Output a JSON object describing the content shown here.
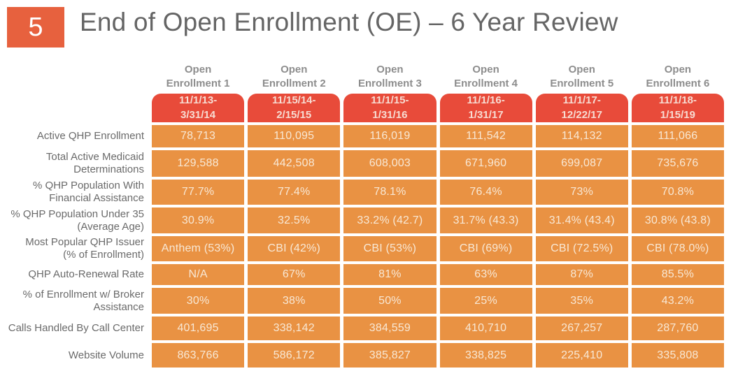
{
  "slide": {
    "slide_number": "5",
    "title": "End of Open Enrollment (OE) – 6 Year Review"
  },
  "colors": {
    "slide_number_box": "#e7613e",
    "period_cell_red": "#e84b3a",
    "data_cell_orange": "#e99243",
    "title_text": "#656565",
    "column_header_text": "#8d8d8d",
    "row_label_text": "#6a6a6a",
    "cell_text": "#f8e8d5",
    "period_text": "#f7dcd2"
  },
  "table": {
    "columns": [
      {
        "label": "Open\nEnrollment 1",
        "period": "11/1/13-\n3/31/14"
      },
      {
        "label": "Open\nEnrollment 2",
        "period": "11/15/14-\n2/15/15"
      },
      {
        "label": "Open\nEnrollment 3",
        "period": "11/1/15-\n1/31/16"
      },
      {
        "label": "Open\nEnrollment 4",
        "period": "11/1/16-\n1/31/17"
      },
      {
        "label": "Open\nEnrollment 5",
        "period": "11/1/17-\n12/22/17"
      },
      {
        "label": "Open\nEnrollment 6",
        "period": "11/1/18-\n1/15/19"
      }
    ],
    "rows": [
      {
        "label": "Active QHP Enrollment",
        "values": [
          "78,713",
          "110,095",
          "116,019",
          "111,542",
          "114,132",
          "111,066"
        ]
      },
      {
        "label": "Total Active Medicaid\nDeterminations",
        "values": [
          "129,588",
          "442,508",
          "608,003",
          "671,960",
          "699,087",
          "735,676"
        ]
      },
      {
        "label": "% QHP Population With\nFinancial Assistance",
        "values": [
          "77.7%",
          "77.4%",
          "78.1%",
          "76.4%",
          "73%",
          "70.8%"
        ]
      },
      {
        "label": "% QHP Population Under 35\n(Average Age)",
        "values": [
          "30.9%",
          "32.5%",
          "33.2% (42.7)",
          "31.7% (43.3)",
          "31.4% (43.4)",
          "30.8% (43.8)"
        ]
      },
      {
        "label": "Most Popular QHP Issuer\n(% of Enrollment)",
        "values": [
          "Anthem (53%)",
          "CBI (42%)",
          "CBI (53%)",
          "CBI (69%)",
          "CBI (72.5%)",
          "CBI (78.0%)"
        ]
      },
      {
        "label": "QHP Auto-Renewal Rate",
        "values": [
          "N/A",
          "67%",
          "81%",
          "63%",
          "87%",
          "85.5%"
        ]
      },
      {
        "label": "% of Enrollment w/ Broker\nAssistance",
        "values": [
          "30%",
          "38%",
          "50%",
          "25%",
          "35%",
          "43.2%"
        ]
      },
      {
        "label": "Calls Handled By Call Center",
        "values": [
          "401,695",
          "338,142",
          "384,559",
          "410,710",
          "267,257",
          "287,760"
        ]
      },
      {
        "label": "Website Volume",
        "values": [
          "863,766",
          "586,172",
          "385,827",
          "338,825",
          "225,410",
          "335,808"
        ]
      }
    ]
  }
}
